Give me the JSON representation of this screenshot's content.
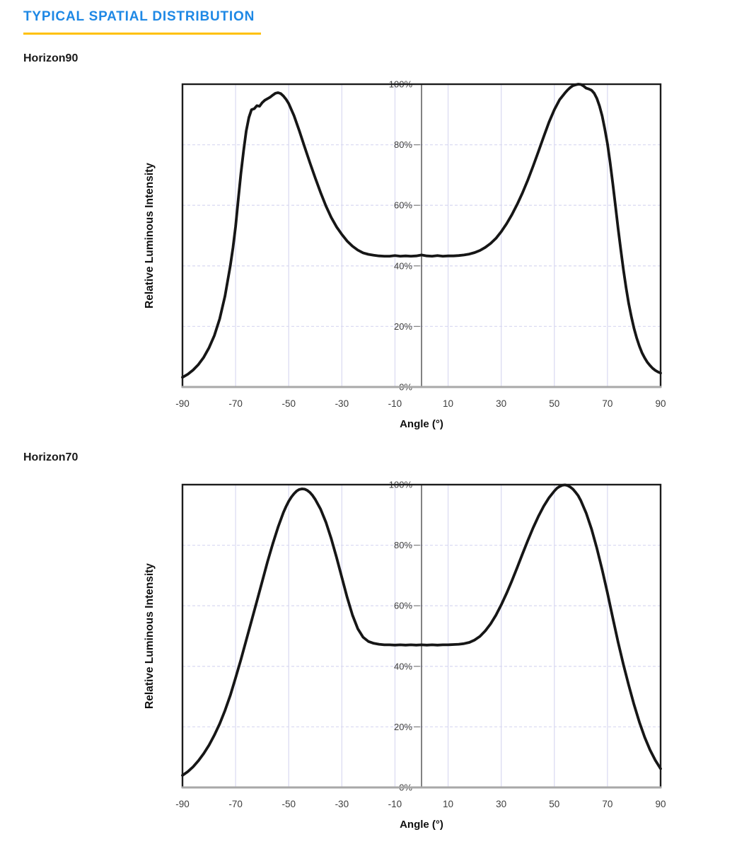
{
  "page": {
    "title": "TYPICAL SPATIAL DISTRIBUTION",
    "colors": {
      "accent": "#1E88E5",
      "underline": "#FFC107",
      "curve": "#161616",
      "grid": "#DBDBF2",
      "axis_text": "#3D3D3D",
      "title_text": "#101010",
      "frame": "#1C1C1C",
      "baseline": "#A8A8A8",
      "center_axis": "#4D4D4D",
      "tick": "#888888"
    }
  },
  "chart_data": [
    {
      "name": "Horizon90",
      "type": "line",
      "title": "",
      "xlabel": "Angle (°)",
      "ylabel": "Relative Luminous Intensity",
      "xlim": [
        -90,
        90
      ],
      "ylim_pct": [
        0,
        100
      ],
      "x_ticks": [
        -90,
        -70,
        -50,
        -30,
        -10,
        10,
        30,
        50,
        70,
        90
      ],
      "y_ticks_pct": [
        0,
        20,
        40,
        60,
        80,
        100
      ],
      "y_tick_labels": [
        "0%",
        "20%",
        "40%",
        "60%",
        "80%",
        "100%"
      ],
      "grid": true,
      "legend": false,
      "series": [
        {
          "name": "Horizon90",
          "points_angle_pct": [
            [
              -90,
              3.2
            ],
            [
              -88,
              4.2
            ],
            [
              -86,
              5.6
            ],
            [
              -84,
              7.4
            ],
            [
              -82,
              9.8
            ],
            [
              -80,
              13
            ],
            [
              -78,
              17
            ],
            [
              -76,
              22.5
            ],
            [
              -74,
              30
            ],
            [
              -72,
              40
            ],
            [
              -71,
              46
            ],
            [
              -70,
              53
            ],
            [
              -69,
              62
            ],
            [
              -68,
              70.5
            ],
            [
              -67,
              78
            ],
            [
              -66,
              84.5
            ],
            [
              -65,
              89
            ],
            [
              -64,
              91.6
            ],
            [
              -63,
              91.9
            ],
            [
              -62,
              92.9
            ],
            [
              -61,
              92.7
            ],
            [
              -60,
              93.9
            ],
            [
              -59,
              94.7
            ],
            [
              -58,
              95.2
            ],
            [
              -57,
              95.7
            ],
            [
              -56,
              96.4
            ],
            [
              -55,
              97
            ],
            [
              -54,
              97.2
            ],
            [
              -53,
              96.9
            ],
            [
              -52,
              96.1
            ],
            [
              -51,
              95
            ],
            [
              -50,
              93.6
            ],
            [
              -48,
              89.6
            ],
            [
              -46,
              84.6
            ],
            [
              -44,
              79.2
            ],
            [
              -42,
              74
            ],
            [
              -40,
              69
            ],
            [
              -38,
              64.2
            ],
            [
              -36,
              59.8
            ],
            [
              -34,
              56
            ],
            [
              -32,
              52.9
            ],
            [
              -30,
              50.4
            ],
            [
              -28,
              48.2
            ],
            [
              -26,
              46.5
            ],
            [
              -24,
              45.2
            ],
            [
              -22,
              44.3
            ],
            [
              -20,
              43.8
            ],
            [
              -18,
              43.5
            ],
            [
              -16,
              43.3
            ],
            [
              -14,
              43.2
            ],
            [
              -12,
              43.2
            ],
            [
              -10,
              43.4
            ],
            [
              -8,
              43.2
            ],
            [
              -6,
              43.3
            ],
            [
              -4,
              43.2
            ],
            [
              -2,
              43.3
            ],
            [
              0,
              43.6
            ],
            [
              2,
              43.3
            ],
            [
              4,
              43.2
            ],
            [
              6,
              43.4
            ],
            [
              8,
              43.2
            ],
            [
              10,
              43.3
            ],
            [
              12,
              43.3
            ],
            [
              14,
              43.4
            ],
            [
              16,
              43.6
            ],
            [
              18,
              43.9
            ],
            [
              20,
              44.4
            ],
            [
              22,
              45.1
            ],
            [
              24,
              46.1
            ],
            [
              26,
              47.4
            ],
            [
              28,
              49.1
            ],
            [
              30,
              51.3
            ],
            [
              32,
              53.9
            ],
            [
              34,
              56.9
            ],
            [
              36,
              60.3
            ],
            [
              38,
              64.1
            ],
            [
              40,
              68.3
            ],
            [
              42,
              72.9
            ],
            [
              44,
              77.7
            ],
            [
              46,
              82.7
            ],
            [
              48,
              87.5
            ],
            [
              50,
              91.6
            ],
            [
              52,
              94.9
            ],
            [
              54,
              97.1
            ],
            [
              55,
              98.1
            ],
            [
              56,
              98.9
            ],
            [
              57,
              99.5
            ],
            [
              58,
              99.8
            ],
            [
              59,
              100
            ],
            [
              60,
              99.9
            ],
            [
              61,
              99.4
            ],
            [
              62,
              98.7
            ],
            [
              63,
              98.4
            ],
            [
              64,
              98
            ],
            [
              65,
              97
            ],
            [
              66,
              95.3
            ],
            [
              67,
              92.8
            ],
            [
              68,
              89.5
            ],
            [
              69,
              85.2
            ],
            [
              70,
              80.3
            ],
            [
              71,
              74.2
            ],
            [
              72,
              67.2
            ],
            [
              73,
              59.8
            ],
            [
              74,
              52.4
            ],
            [
              75,
              45.4
            ],
            [
              76,
              38.8
            ],
            [
              77,
              32.8
            ],
            [
              78,
              27.6
            ],
            [
              79,
              23.2
            ],
            [
              80,
              19.4
            ],
            [
              81,
              16.2
            ],
            [
              82,
              13.5
            ],
            [
              83,
              11.3
            ],
            [
              84,
              9.6
            ],
            [
              85,
              8.2
            ],
            [
              86,
              7.1
            ],
            [
              87,
              6.2
            ],
            [
              88,
              5.5
            ],
            [
              89,
              5
            ],
            [
              90,
              4.6
            ]
          ]
        }
      ]
    },
    {
      "name": "Horizon70",
      "type": "line",
      "title": "",
      "xlabel": "Angle (°)",
      "ylabel": "Relative Luminous Intensity",
      "xlim": [
        -90,
        90
      ],
      "ylim_pct": [
        0,
        100
      ],
      "x_ticks": [
        -90,
        -70,
        -50,
        -30,
        -10,
        10,
        30,
        50,
        70,
        90
      ],
      "y_ticks_pct": [
        0,
        20,
        40,
        60,
        80,
        100
      ],
      "y_tick_labels": [
        "0%",
        "20%",
        "40%",
        "60%",
        "80%",
        "100%"
      ],
      "grid": true,
      "legend": false,
      "series": [
        {
          "name": "Horizon70",
          "points_angle_pct": [
            [
              -90,
              4
            ],
            [
              -88,
              5.2
            ],
            [
              -86,
              6.8
            ],
            [
              -84,
              8.8
            ],
            [
              -82,
              11.2
            ],
            [
              -80,
              14
            ],
            [
              -78,
              17.3
            ],
            [
              -76,
              21
            ],
            [
              -74,
              25.4
            ],
            [
              -72,
              30.4
            ],
            [
              -70,
              36.2
            ],
            [
              -68,
              42.2
            ],
            [
              -66,
              48.6
            ],
            [
              -64,
              55
            ],
            [
              -62,
              61.5
            ],
            [
              -60,
              68
            ],
            [
              -58,
              74.5
            ],
            [
              -56,
              80.5
            ],
            [
              -54,
              86
            ],
            [
              -52,
              90.8
            ],
            [
              -51,
              92.8
            ],
            [
              -50,
              94.5
            ],
            [
              -49,
              95.9
            ],
            [
              -48,
              97
            ],
            [
              -47,
              97.9
            ],
            [
              -46,
              98.4
            ],
            [
              -45,
              98.6
            ],
            [
              -44,
              98.5
            ],
            [
              -43,
              98.1
            ],
            [
              -42,
              97.4
            ],
            [
              -41,
              96.4
            ],
            [
              -40,
              95.1
            ],
            [
              -38,
              91.9
            ],
            [
              -36,
              87.6
            ],
            [
              -34,
              82.2
            ],
            [
              -32,
              76
            ],
            [
              -30,
              69.4
            ],
            [
              -28,
              62.8
            ],
            [
              -26,
              56.9
            ],
            [
              -24,
              52.4
            ],
            [
              -22,
              49.6
            ],
            [
              -20,
              48.2
            ],
            [
              -18,
              47.6
            ],
            [
              -16,
              47.3
            ],
            [
              -14,
              47.1
            ],
            [
              -12,
              47.1
            ],
            [
              -10,
              47
            ],
            [
              -8,
              47.1
            ],
            [
              -6,
              47
            ],
            [
              -4,
              47.1
            ],
            [
              -2,
              47
            ],
            [
              0,
              47.1
            ],
            [
              2,
              47
            ],
            [
              4,
              47.1
            ],
            [
              6,
              47
            ],
            [
              8,
              47.1
            ],
            [
              10,
              47.1
            ],
            [
              12,
              47.2
            ],
            [
              14,
              47.3
            ],
            [
              16,
              47.5
            ],
            [
              18,
              47.9
            ],
            [
              20,
              48.7
            ],
            [
              22,
              49.9
            ],
            [
              24,
              51.7
            ],
            [
              26,
              54
            ],
            [
              28,
              56.9
            ],
            [
              30,
              60.3
            ],
            [
              32,
              64.1
            ],
            [
              34,
              68.2
            ],
            [
              36,
              72.6
            ],
            [
              38,
              77.1
            ],
            [
              40,
              81.5
            ],
            [
              42,
              85.7
            ],
            [
              44,
              89.5
            ],
            [
              46,
              92.9
            ],
            [
              48,
              95.7
            ],
            [
              50,
              97.9
            ],
            [
              51,
              98.8
            ],
            [
              52,
              99.4
            ],
            [
              53,
              99.8
            ],
            [
              54,
              99.9
            ],
            [
              55,
              99.7
            ],
            [
              56,
              99.2
            ],
            [
              57,
              98.5
            ],
            [
              58,
              97.5
            ],
            [
              59,
              96.3
            ],
            [
              60,
              94.7
            ],
            [
              62,
              90.6
            ],
            [
              64,
              85.3
            ],
            [
              66,
              79
            ],
            [
              68,
              71.9
            ],
            [
              70,
              64.2
            ],
            [
              72,
              56
            ],
            [
              74,
              48
            ],
            [
              76,
              40.6
            ],
            [
              78,
              33.8
            ],
            [
              80,
              27.4
            ],
            [
              82,
              21.6
            ],
            [
              84,
              16.6
            ],
            [
              86,
              12.4
            ],
            [
              88,
              9
            ],
            [
              90,
              6.2
            ]
          ]
        }
      ]
    }
  ]
}
